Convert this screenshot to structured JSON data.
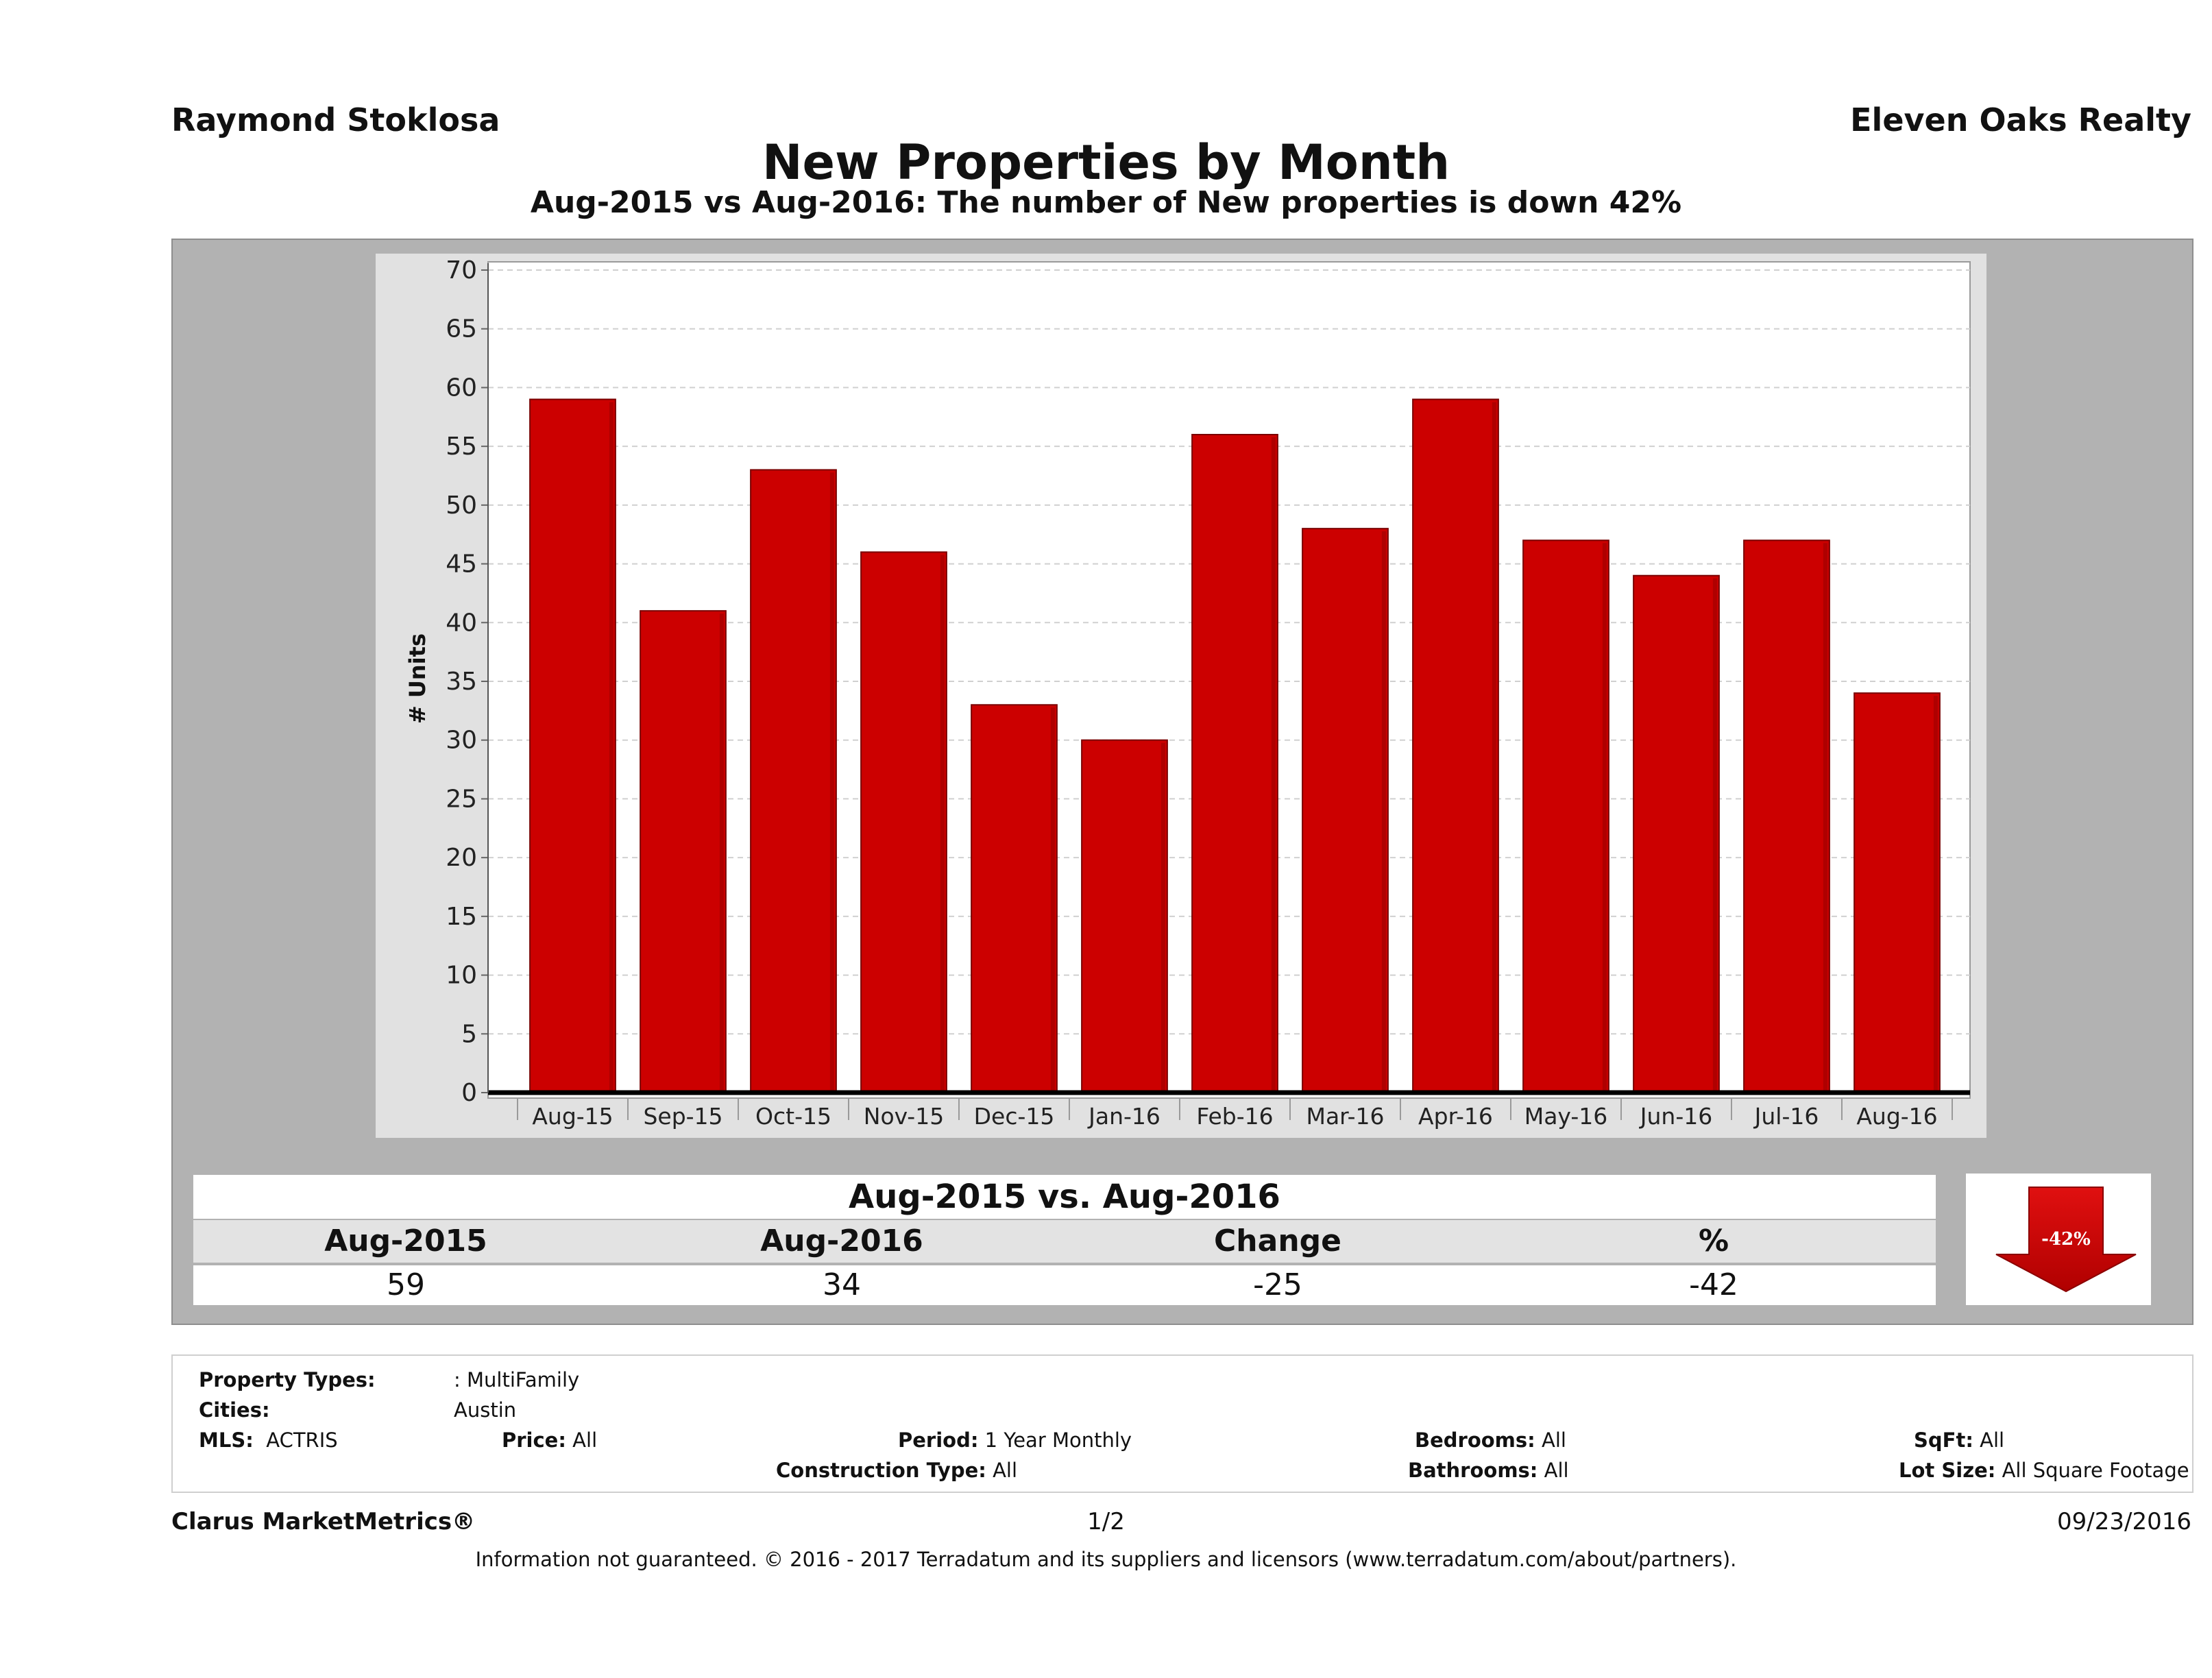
{
  "header": {
    "agent": "Raymond Stoklosa",
    "company": "Eleven Oaks Realty",
    "title": "New Properties by Month",
    "subtitle": "Aug-2015 vs Aug-2016: The number of New  properties is down 42%"
  },
  "chart_data": {
    "type": "bar",
    "title": "New Properties by Month",
    "xlabel": "",
    "ylabel": "# Units",
    "ylim": [
      0,
      70
    ],
    "yticks": [
      0,
      5,
      10,
      15,
      20,
      25,
      30,
      35,
      40,
      45,
      50,
      55,
      60,
      65,
      70
    ],
    "grid": true,
    "categories": [
      "Aug-15",
      "Sep-15",
      "Oct-15",
      "Nov-15",
      "Dec-15",
      "Jan-16",
      "Feb-16",
      "Mar-16",
      "Apr-16",
      "May-16",
      "Jun-16",
      "Jul-16",
      "Aug-16"
    ],
    "values": [
      59,
      41,
      53,
      46,
      33,
      30,
      56,
      48,
      59,
      47,
      44,
      47,
      34
    ],
    "bar_color": "#cc0000"
  },
  "summary": {
    "title": "Aug-2015 vs. Aug-2016",
    "headers": [
      "Aug-2015",
      "Aug-2016",
      "Change",
      "%"
    ],
    "values": [
      "59",
      "34",
      "-25",
      "-42"
    ],
    "badge": "-42%",
    "badge_color": "#d10000"
  },
  "filters": {
    "property_types_label": "Property Types:",
    "property_types_value": ": MultiFamily",
    "cities_label": "Cities:",
    "cities_value": "Austin",
    "mls_label": "MLS:",
    "mls_value": "ACTRIS",
    "price_label": "Price:",
    "price_value": "All",
    "period_label": "Period:",
    "period_value": "1 Year Monthly",
    "construction_label": "Construction Type:",
    "construction_value": "All",
    "bedrooms_label": "Bedrooms:",
    "bedrooms_value": "All",
    "bathrooms_label": "Bathrooms:",
    "bathrooms_value": "All",
    "sqft_label": "SqFt:",
    "sqft_value": "All",
    "lotsize_label": "Lot Size:",
    "lotsize_value": "All Square Footage"
  },
  "footer": {
    "brand": "Clarus MarketMetrics®",
    "page": "1/2",
    "date": "09/23/2016",
    "disclaimer": "Information not guaranteed. © 2016 - 2017 Terradatum and its suppliers and licensors (www.terradatum.com/about/partners)."
  }
}
